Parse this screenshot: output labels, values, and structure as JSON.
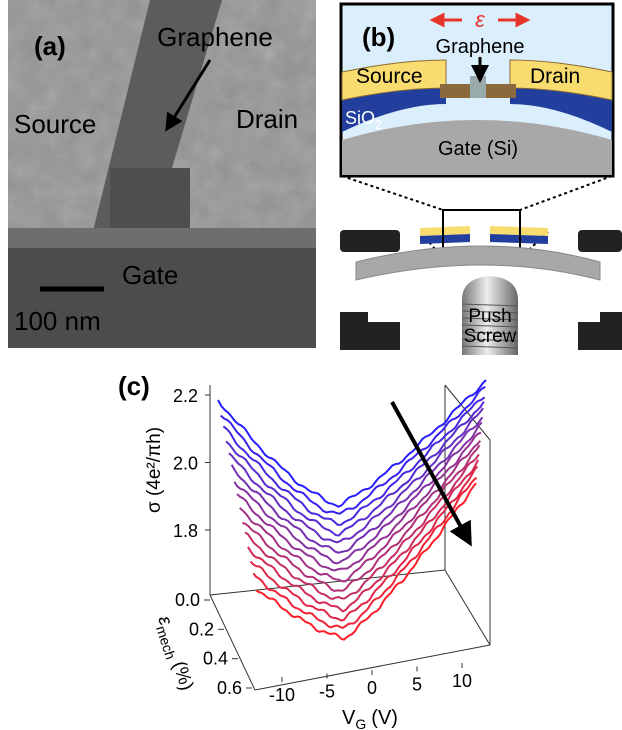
{
  "panel_a": {
    "label": "(a)",
    "graphene": "Graphene",
    "source": "Source",
    "drain": "Drain",
    "gate": "Gate",
    "scale_bar": "100 nm"
  },
  "panel_b": {
    "label": "(b)",
    "strain_symbol": "ε",
    "graphene": "Graphene",
    "source": "Source",
    "drain": "Drain",
    "oxide": "SiO",
    "oxide_subscript": "2",
    "gate": "Gate (Si)",
    "push": "Push",
    "screw": "Screw"
  },
  "panel_c": {
    "label": "(c)",
    "y_label": "σ (4e²/πh)",
    "x_label": {
      "symbol": "V",
      "subscript": "G",
      "unit": "(V)"
    },
    "z_label": {
      "symbol": "ε",
      "subscript": "mech",
      "unit": "(%)"
    },
    "yticks": [
      1.8,
      {
        "value": 2,
        "label": "2.0"
      },
      2.2
    ],
    "zticks": [
      {
        "value": 0,
        "label": "0.0"
      },
      0.2,
      0.4,
      0.6
    ],
    "xticks": [
      -10,
      -5,
      0,
      5,
      10
    ]
  }
}
